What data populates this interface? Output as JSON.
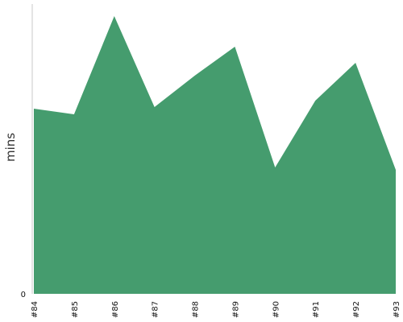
{
  "chart_data": {
    "type": "area",
    "categories": [
      "#84",
      "#85",
      "#86",
      "#87",
      "#88",
      "#89",
      "#90",
      "#91",
      "#92",
      "#93"
    ],
    "series": [
      {
        "values": [
          230,
          223,
          345,
          232,
          271,
          307,
          157,
          240,
          287,
          154
        ]
      }
    ],
    "ylabel": "mins",
    "ylim": [
      0,
      360
    ],
    "y_ticks": [
      "0"
    ],
    "grid": false,
    "colors": {
      "area_fill": "#459c6e",
      "axis": "#c8c8c8",
      "text": "#111111"
    }
  }
}
